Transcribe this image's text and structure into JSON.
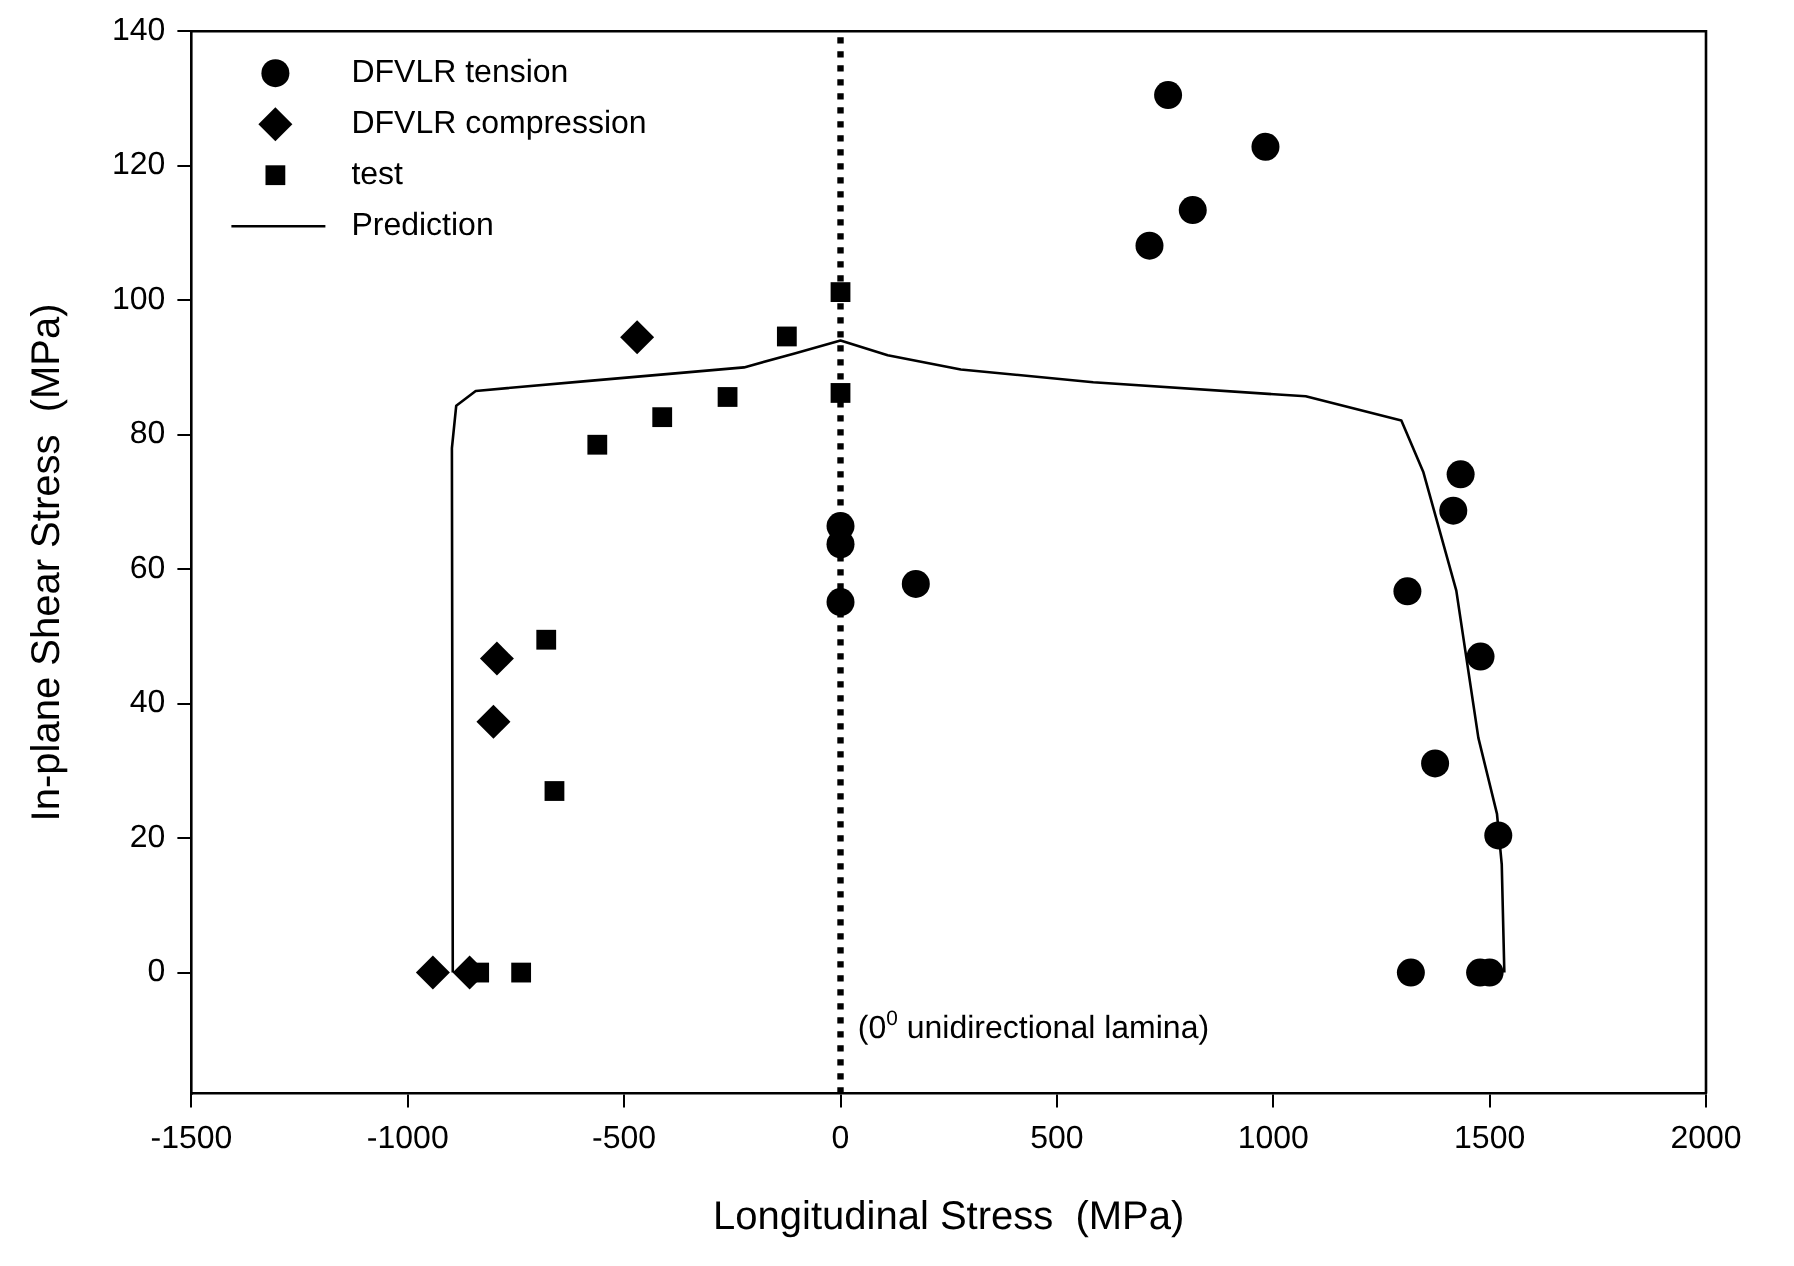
{
  "chart_data": {
    "type": "scatter",
    "xlabel": "Longitudinal Stress  (MPa)",
    "ylabel": "In-plane Shear Stress  (MPa)",
    "xlim": [
      -1500,
      2000
    ],
    "xticks": [
      -1500,
      -1000,
      -500,
      0,
      500,
      1000,
      1500,
      2000
    ],
    "ylim": [
      -18,
      140
    ],
    "yticks": [
      0,
      20,
      40,
      60,
      80,
      100,
      120,
      140
    ],
    "grid": false,
    "legend": "top left",
    "annotations": [
      "(0$^{0}$ unidirectional lamina)"
    ],
    "ref_lines": [
      {
        "axis": "x",
        "value": 0,
        "color": "#000000",
        "line_style": "dotted"
      }
    ],
    "series": [
      {
        "name": "DFVLR tension",
        "marker": "circle",
        "color": "#000000",
        "x": [
          0,
          0,
          0,
          174,
          757,
          982,
          814,
          714,
          1433,
          1416,
          1310,
          1479,
          1374,
          1520,
          1318,
          1478,
          1500
        ],
        "values": [
          66.4,
          63.7,
          55.1,
          57.8,
          130.5,
          122.8,
          113.4,
          108.1,
          74.1,
          68.7,
          56.7,
          47.0,
          31.1,
          20.4,
          0,
          0,
          0
        ]
      },
      {
        "name": "DFVLR compression",
        "marker": "diamond",
        "color": "#000000",
        "x": [
          -470,
          -794,
          -802,
          -942,
          -857
        ],
        "values": [
          94.5,
          46.7,
          37.3,
          0,
          0
        ]
      },
      {
        "name": "test",
        "marker": "square",
        "color": "#000000",
        "x": [
          0,
          -124,
          -261,
          -412,
          -562,
          0,
          -680,
          -661,
          -835,
          -738
        ],
        "values": [
          101.2,
          94.6,
          85.6,
          82.6,
          78.5,
          86.2,
          49.5,
          27,
          0,
          0
        ]
      },
      {
        "name": "Prediction",
        "type": "line",
        "marker": "none",
        "line_style": "solid",
        "color": "#000000",
        "x": [
          -896,
          -898,
          -888,
          -843,
          -581,
          -223,
          -104,
          0,
          109,
          278,
          584,
          1075,
          1296,
          1347,
          1423,
          1474,
          1517,
          1528,
          1534
        ],
        "values": [
          0,
          78,
          84.3,
          86.5,
          88,
          90,
          92.1,
          94,
          91.8,
          89.7,
          87.8,
          85.7,
          82.1,
          74.4,
          56.8,
          34.9,
          23.6,
          16.1,
          0
        ]
      }
    ]
  }
}
